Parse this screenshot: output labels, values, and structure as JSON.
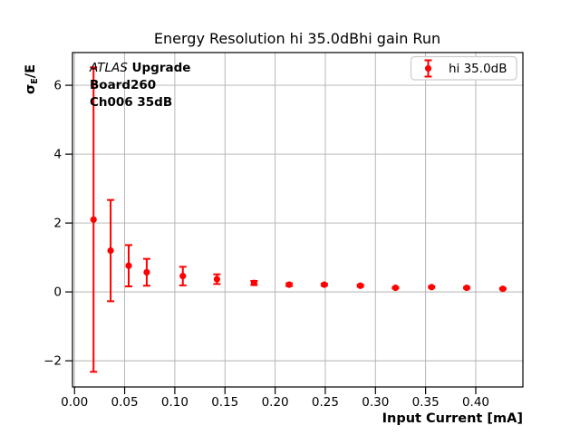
{
  "title": "Energy Resolution hi 35.0dBhi gain Run",
  "labels": {
    "ylabel_sigma": "σ",
    "ylabel_sub": "E",
    "ylabel_rest": "/E"
  },
  "annotation": {
    "experiment": "ATLAS",
    "experiment_suffix": " Upgrade",
    "line2": "Board260",
    "line3": "Ch006 35dB"
  },
  "legend": {
    "label": "hi 35.0dB"
  },
  "colors": {
    "series": "#ff0000",
    "grid": "#b0b0b0",
    "spine": "#000000",
    "legend_border": "#cccccc",
    "legend_bg": "#ffffff"
  },
  "chart_data": {
    "type": "scatter",
    "title": "Energy Resolution hi 35.0dBhi gain Run",
    "xlabel": "Input Current [mA]",
    "ylabel": "σ_E/E",
    "xlim": [
      -0.002,
      0.447
    ],
    "ylim": [
      -2.76,
      6.95
    ],
    "xticks": [
      0.0,
      0.05,
      0.1,
      0.15,
      0.2,
      0.25,
      0.3,
      0.35,
      0.4
    ],
    "xtick_labels": [
      "0.00",
      "0.05",
      "0.10",
      "0.15",
      "0.20",
      "0.25",
      "0.30",
      "0.35",
      "0.40"
    ],
    "yticks": [
      -2,
      0,
      2,
      4,
      6
    ],
    "ytick_labels": [
      "−2",
      "0",
      "2",
      "4",
      "6"
    ],
    "grid": true,
    "legend_position": "upper right",
    "series": [
      {
        "name": "hi 35.0dB",
        "color": "#ff0000",
        "marker": "circle",
        "x": [
          0.019,
          0.036,
          0.054,
          0.072,
          0.108,
          0.142,
          0.179,
          0.214,
          0.249,
          0.285,
          0.32,
          0.356,
          0.391,
          0.427
        ],
        "y": [
          2.1,
          1.2,
          0.76,
          0.57,
          0.46,
          0.37,
          0.26,
          0.21,
          0.21,
          0.18,
          0.12,
          0.14,
          0.12,
          0.09
        ],
        "yerr": [
          4.42,
          1.47,
          0.6,
          0.39,
          0.27,
          0.14,
          0.06,
          0.04,
          0.03,
          0.03,
          0.02,
          0.02,
          0.02,
          0.02
        ]
      }
    ]
  }
}
